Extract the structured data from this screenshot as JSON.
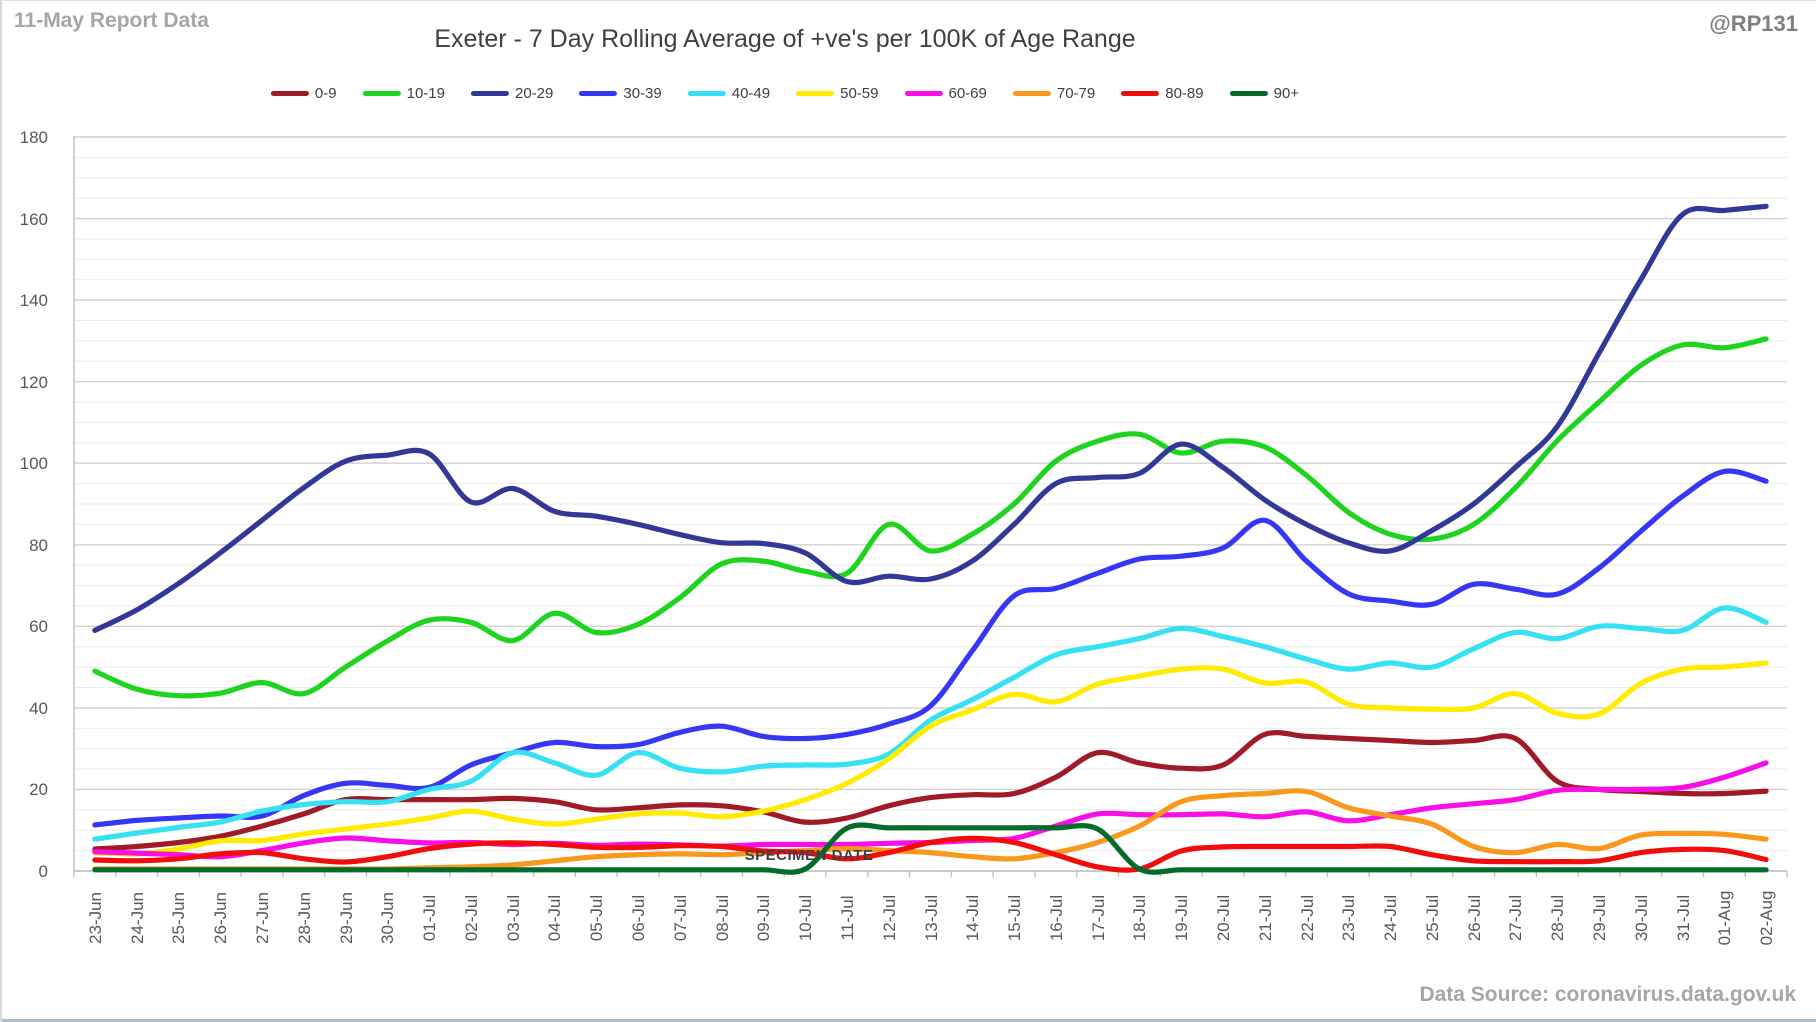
{
  "header": {
    "report_label": "11-May Report Data",
    "handle": "@RP131",
    "title": "Exeter - 7 Day Rolling Average of +ve's per 100K of Age Range"
  },
  "footer": {
    "xlabel": "SPECIMEN DATE",
    "source": "Data Source: coronavirus.data.gov.uk"
  },
  "chart_data": {
    "type": "line",
    "title": "Exeter - 7 Day Rolling Average of +ve's per 100K of Age Range",
    "xlabel": "SPECIMEN DATE",
    "ylabel": "",
    "ylim": [
      0,
      180
    ],
    "ytick_step": 20,
    "minor_grid_step": 5,
    "grid": true,
    "legend_position": "top",
    "line_smooth": true,
    "axis_colors": {
      "grid_major": "#d2d2d2",
      "grid_minor": "#ebebeb",
      "axis": "#c0c0c0",
      "tick_label": "#595959"
    },
    "categories": [
      "23-Jun",
      "24-Jun",
      "25-Jun",
      "26-Jun",
      "27-Jun",
      "28-Jun",
      "29-Jun",
      "30-Jun",
      "01-Jul",
      "02-Jul",
      "03-Jul",
      "04-Jul",
      "05-Jul",
      "06-Jul",
      "07-Jul",
      "08-Jul",
      "09-Jul",
      "10-Jul",
      "11-Jul",
      "12-Jul",
      "13-Jul",
      "14-Jul",
      "15-Jul",
      "16-Jul",
      "17-Jul",
      "18-Jul",
      "19-Jul",
      "20-Jul",
      "21-Jul",
      "22-Jul",
      "23-Jul",
      "24-Jul",
      "25-Jul",
      "26-Jul",
      "27-Jul",
      "28-Jul",
      "29-Jul",
      "30-Jul",
      "31-Jul",
      "01-Aug",
      "02-Aug"
    ],
    "series": [
      {
        "name": "0-9",
        "color": "#a01b27",
        "values": [
          5.4,
          6,
          7,
          8.5,
          11,
          14,
          17.5,
          17.5,
          17.5,
          17.5,
          17.8,
          17,
          15,
          15.5,
          16.2,
          16,
          14.5,
          12,
          13,
          16,
          18,
          18.7,
          19,
          23,
          29,
          26.5,
          25.2,
          26,
          33.5,
          33,
          32.5,
          32,
          31.5,
          32,
          32.5,
          22,
          20,
          19.5,
          19,
          19,
          19.6
        ]
      },
      {
        "name": "10-19",
        "color": "#1ed41e",
        "values": [
          49,
          44.6,
          43,
          43.6,
          46.2,
          43.5,
          50,
          56.4,
          61.5,
          61,
          56.5,
          63.2,
          58.5,
          60.5,
          67,
          75.3,
          76,
          73.5,
          73,
          85,
          78.5,
          82.6,
          90,
          100.5,
          105.4,
          107.1,
          102.5,
          105.4,
          104,
          97,
          88,
          82.6,
          81.4,
          85,
          94,
          105.5,
          115,
          124,
          129,
          128.3,
          130.5
        ]
      },
      {
        "name": "20-29",
        "color": "#313896",
        "values": [
          59,
          64,
          70.5,
          78,
          86,
          94,
          100.5,
          102,
          102.3,
          90.5,
          93.8,
          88.2,
          87,
          85,
          82.5,
          80.5,
          80.3,
          78,
          71,
          72.3,
          71.6,
          76,
          85,
          95,
          96.5,
          97.5,
          104.7,
          99,
          91,
          85,
          80.5,
          78.5,
          83.5,
          90,
          99,
          109,
          127,
          145,
          161,
          162,
          163
        ]
      },
      {
        "name": "30-39",
        "color": "#3636f5",
        "values": [
          11.3,
          12.4,
          13,
          13.5,
          13.5,
          18.5,
          21.5,
          21,
          20.5,
          26,
          29,
          31.5,
          30.5,
          31,
          34,
          35.5,
          33,
          32.5,
          33.5,
          36,
          40.5,
          54,
          67.5,
          69.3,
          73,
          76.5,
          77.2,
          79.2,
          86,
          76,
          68,
          66.2,
          65.4,
          70.3,
          69.1,
          67.9,
          74.3,
          83.3,
          91.9,
          98,
          95.6
        ]
      },
      {
        "name": "40-49",
        "color": "#35e1f2",
        "values": [
          7.8,
          9.3,
          10.7,
          12,
          14.7,
          16.3,
          17,
          17,
          20,
          22,
          29,
          26.5,
          23.5,
          29,
          25.2,
          24.3,
          25.7,
          26,
          26.2,
          28.7,
          37,
          42,
          47.5,
          53,
          55,
          57,
          59.5,
          57.5,
          55,
          52,
          49.5,
          51,
          50,
          54.5,
          58.5,
          57,
          60,
          59.5,
          59,
          64.5,
          61
        ]
      },
      {
        "name": "50-59",
        "color": "#ffec00",
        "values": [
          4.5,
          4.2,
          5.4,
          7.4,
          7.5,
          9.1,
          10.3,
          11.5,
          13,
          14.7,
          12.7,
          11.5,
          12.7,
          14,
          14.2,
          13.3,
          14.7,
          17.5,
          21.5,
          27.5,
          35.5,
          39.5,
          43.3,
          41.5,
          45.8,
          47.8,
          49.5,
          49.5,
          46.1,
          46.3,
          40.9,
          40,
          39.7,
          40,
          43.5,
          38.7,
          38.5,
          46,
          49.5,
          50,
          51
        ]
      },
      {
        "name": "60-69",
        "color": "#f80fe8",
        "values": [
          4.7,
          4.4,
          4,
          3.5,
          5,
          6.9,
          8.1,
          7.4,
          6.9,
          7,
          6.5,
          6.8,
          6.3,
          6.6,
          6.4,
          6.1,
          6.5,
          6.5,
          6.5,
          6.8,
          7,
          7.5,
          8,
          11,
          14,
          13.8,
          13.8,
          14,
          13.3,
          14.5,
          12.3,
          13.8,
          15.5,
          16.5,
          17.5,
          19.8,
          20,
          20,
          20.5,
          23,
          26.5
        ]
      },
      {
        "name": "70-79",
        "color": "#f8981d",
        "values": [
          0.5,
          0.5,
          0.5,
          0.5,
          0.5,
          0.5,
          0.5,
          0.5,
          0.8,
          1,
          1.5,
          2.5,
          3.5,
          4,
          4.2,
          4,
          4.5,
          5,
          5.5,
          5,
          4.5,
          3.5,
          3,
          4.5,
          7,
          11,
          17,
          18.5,
          19,
          19.5,
          15.5,
          13.5,
          11.5,
          6,
          4.5,
          6.5,
          5.5,
          8.8,
          9.2,
          9,
          7.8
        ]
      },
      {
        "name": "80-89",
        "color": "#f20d0d",
        "values": [
          2.7,
          2.5,
          3,
          4.2,
          4.5,
          3,
          2.2,
          3.5,
          5.5,
          6.6,
          6.9,
          6.5,
          5.8,
          5.8,
          6.2,
          6,
          4.9,
          4.5,
          3,
          4.5,
          7,
          8,
          7,
          4,
          1,
          0.5,
          4.9,
          5.9,
          6,
          6,
          6,
          6,
          4,
          2.5,
          2.3,
          2.3,
          2.5,
          4.5,
          5.3,
          5,
          2.8
        ]
      },
      {
        "name": "90+",
        "color": "#056b2a",
        "values": [
          0.3,
          0.3,
          0.3,
          0.3,
          0.3,
          0.3,
          0.3,
          0.3,
          0.3,
          0.3,
          0.3,
          0.3,
          0.3,
          0.3,
          0.3,
          0.3,
          0.3,
          0.5,
          10.5,
          10.6,
          10.6,
          10.6,
          10.6,
          10.6,
          10.3,
          0.5,
          0.3,
          0.3,
          0.3,
          0.3,
          0.3,
          0.3,
          0.3,
          0.3,
          0.3,
          0.3,
          0.3,
          0.3,
          0.3,
          0.3,
          0.3
        ]
      }
    ]
  }
}
